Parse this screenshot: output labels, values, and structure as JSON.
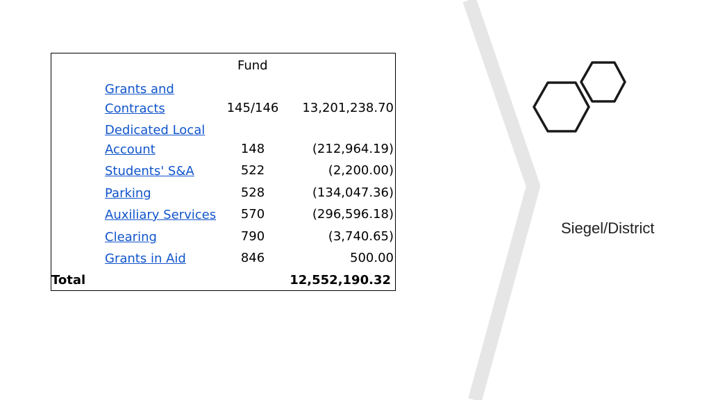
{
  "table": {
    "header": "Fund",
    "rows": [
      {
        "name_line1": "Grants and",
        "name_line2": "Contracts",
        "code": "145/146",
        "amount": "13,201,238.70"
      },
      {
        "name_line1": "Dedicated Local",
        "name_line2": "Account",
        "code": "148",
        "amount": "(212,964.19)"
      },
      {
        "name": "Students' S&A",
        "code": "522",
        "amount": "(2,200.00)"
      },
      {
        "name": "Parking",
        "code": "528",
        "amount": "(134,047.36)"
      },
      {
        "name": "Auxiliary Services",
        "code": "570",
        "amount": "(296,596.18)"
      },
      {
        "name": "Clearing",
        "code": "790",
        "amount": "(3,740.65)"
      },
      {
        "name": "Grants in Aid",
        "code": "846",
        "amount": "500.00"
      }
    ],
    "total_label": "Total",
    "total_amount": "12,552,190.32"
  },
  "caption": "Siegel/District",
  "colors": {
    "link": "#1155cc",
    "chevron": "#e6e6e6",
    "hexagon_stroke": "#1a1a1a"
  }
}
